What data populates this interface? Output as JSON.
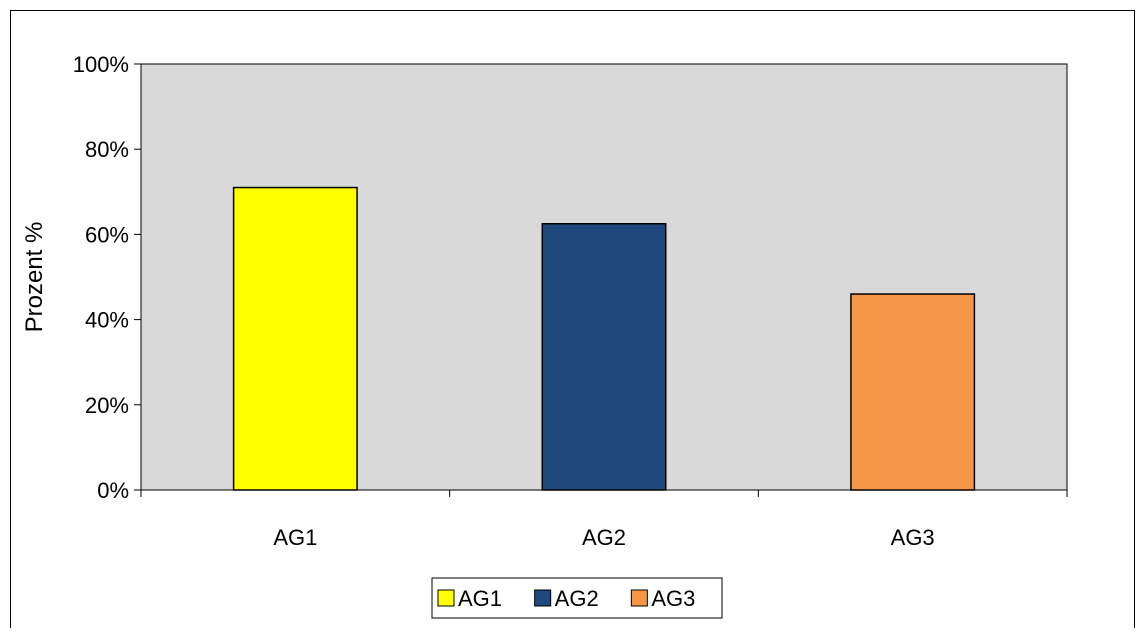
{
  "chart_data": {
    "type": "bar",
    "title": "",
    "xlabel": "",
    "ylabel": "Prozent %",
    "categories": [
      "AG1",
      "AG2",
      "AG3"
    ],
    "values": [
      71,
      62.5,
      46
    ],
    "y_unit": "%",
    "yticks": [
      "0%",
      "20%",
      "40%",
      "60%",
      "80%",
      "100%"
    ],
    "ylim": [
      0,
      100
    ],
    "grid": false,
    "legend": {
      "position": "bottom-center",
      "entries": [
        "AG1",
        "AG2",
        "AG3"
      ]
    },
    "colors": {
      "AG1": "#FFFF00",
      "AG2": "#1F497D",
      "AG3": "#F79646",
      "plot_background": "#D9D9D9"
    }
  }
}
